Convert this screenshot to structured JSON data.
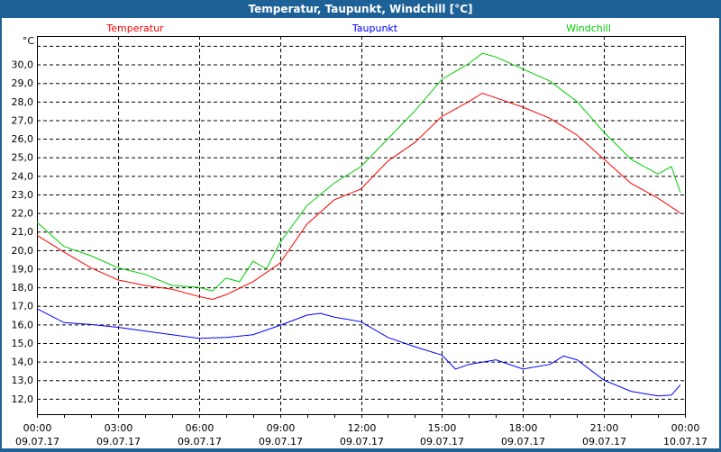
{
  "window": {
    "title": "Temperatur, Taupunkt, Windchill [°C]"
  },
  "chart_data": {
    "type": "line",
    "title": "Temperatur, Taupunkt, Windchill [°C]",
    "ylabel": "°C",
    "xlabel": "",
    "ylim": [
      11.17,
      31.53
    ],
    "xlim_hours": [
      0,
      24
    ],
    "yticks": [
      12,
      13,
      14,
      15,
      16,
      17,
      18,
      19,
      20,
      21,
      22,
      23,
      24,
      25,
      26,
      27,
      28,
      29,
      30
    ],
    "ytick_labels": [
      "12,0",
      "13,0",
      "14,0",
      "15,0",
      "16,0",
      "17,0",
      "18,0",
      "19,0",
      "20,0",
      "21,0",
      "22,0",
      "23,0",
      "24,0",
      "25,0",
      "26,0",
      "27,0",
      "28,0",
      "29,0",
      "30,0"
    ],
    "extra_gridline": 31,
    "xticks": [
      {
        "hour": 0,
        "time": "00:00",
        "date": "09.07.17"
      },
      {
        "hour": 3,
        "time": "03:00",
        "date": "09.07.17"
      },
      {
        "hour": 6,
        "time": "06:00",
        "date": "09.07.17"
      },
      {
        "hour": 9,
        "time": "09:00",
        "date": "09.07.17"
      },
      {
        "hour": 12,
        "time": "12:00",
        "date": "09.07.17"
      },
      {
        "hour": 15,
        "time": "15:00",
        "date": "09.07.17"
      },
      {
        "hour": 18,
        "time": "18:00",
        "date": "09.07.17"
      },
      {
        "hour": 21,
        "time": "21:00",
        "date": "09.07.17"
      },
      {
        "hour": 24,
        "time": "00:00",
        "date": "10.07.17"
      }
    ],
    "grid": true,
    "legend_placement": "top",
    "series": [
      {
        "name": "Temperatur",
        "color": "#ff0000",
        "x": [
          0,
          1,
          2,
          3,
          4,
          5,
          6,
          6.5,
          7,
          8,
          9,
          10,
          11,
          12,
          13,
          14,
          15,
          16,
          16.5,
          17,
          18,
          19,
          20,
          21,
          22,
          23,
          23.83
        ],
        "y": [
          20.8,
          19.9,
          19.05,
          18.4,
          18.1,
          17.9,
          17.5,
          17.35,
          17.6,
          18.3,
          19.3,
          21.4,
          22.7,
          23.3,
          24.8,
          25.8,
          27.2,
          28.0,
          28.45,
          28.2,
          27.7,
          27.1,
          26.2,
          24.9,
          23.6,
          22.8,
          22.0
        ]
      },
      {
        "name": "Taupunkt",
        "color": "#0000ff",
        "x": [
          0,
          1,
          2,
          3,
          4,
          5,
          6,
          7,
          8,
          9,
          10,
          10.5,
          11,
          12,
          13,
          14,
          15,
          15.5,
          16,
          17,
          18,
          19,
          19.5,
          20,
          21,
          22,
          23,
          23.5,
          23.83
        ],
        "y": [
          16.85,
          16.1,
          16.0,
          15.85,
          15.65,
          15.45,
          15.25,
          15.3,
          15.45,
          15.95,
          16.5,
          16.6,
          16.4,
          16.15,
          15.3,
          14.8,
          14.35,
          13.6,
          13.85,
          14.1,
          13.6,
          13.85,
          14.3,
          14.1,
          13.0,
          12.4,
          12.15,
          12.2,
          12.75
        ]
      },
      {
        "name": "Windchill",
        "color": "#00cc00",
        "x": [
          0,
          1,
          2,
          3,
          4,
          5,
          6,
          6.5,
          7,
          7.5,
          8,
          8.5,
          9,
          10,
          11,
          12,
          13,
          14,
          15,
          16,
          16.5,
          17,
          18,
          19,
          20,
          21,
          22,
          23,
          23.5,
          23.83
        ],
        "y": [
          21.5,
          20.2,
          19.7,
          19.05,
          18.7,
          18.1,
          18.0,
          17.8,
          18.5,
          18.3,
          19.4,
          19.0,
          20.4,
          22.4,
          23.6,
          24.5,
          26.0,
          27.5,
          29.2,
          30.05,
          30.6,
          30.4,
          29.75,
          29.1,
          28.0,
          26.35,
          24.9,
          24.1,
          24.5,
          23.1
        ]
      }
    ]
  }
}
